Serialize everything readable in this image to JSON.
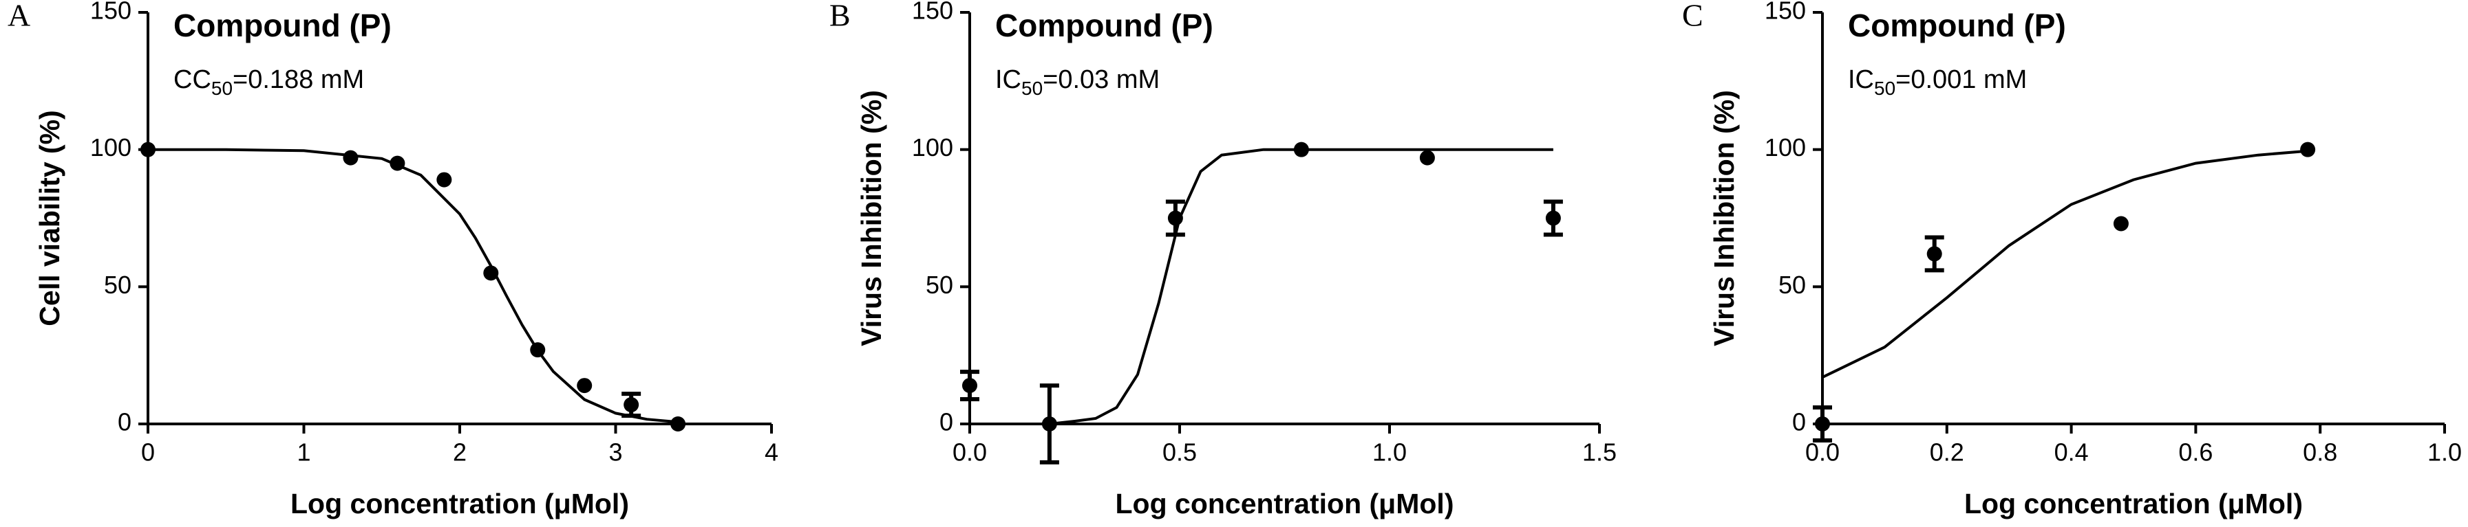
{
  "chart_data": [
    {
      "type": "scatter",
      "panel_label": "A",
      "title": "Compound (P)",
      "annotation": {
        "prefix": "CC",
        "sub": "50",
        "suffix": "=0.188 mM"
      },
      "xlabel": "Log concentration (μMol)",
      "ylabel": "Cell viability (%)",
      "color": "#000000",
      "xlim": [
        0,
        4
      ],
      "ylim": [
        0,
        150
      ],
      "xticks": [
        0,
        1,
        2,
        3,
        4
      ],
      "yticks": [
        0,
        50,
        100,
        150
      ],
      "x": [
        0,
        1.3,
        1.6,
        1.9,
        2.2,
        2.5,
        2.8,
        3.1,
        3.4
      ],
      "values": [
        100,
        97,
        95,
        89,
        55,
        27,
        14,
        7,
        0
      ],
      "errors": [
        null,
        null,
        null,
        null,
        null,
        null,
        null,
        4,
        null
      ],
      "fit": {
        "x": [
          0,
          0.5,
          1,
          1.5,
          1.75,
          2,
          2.1,
          2.2,
          2.3,
          2.4,
          2.5,
          2.6,
          2.8,
          3,
          3.2,
          3.4
        ],
        "values": [
          100,
          100,
          99.6,
          96.7,
          90.7,
          76.5,
          67.8,
          57.6,
          46.7,
          36.1,
          26.8,
          19.1,
          8.9,
          3.9,
          1.7,
          0.7
        ]
      }
    },
    {
      "type": "scatter",
      "panel_label": "B",
      "title": "Compound (P)",
      "annotation": {
        "prefix": "IC",
        "sub": "50",
        "suffix": "=0.03 mM"
      },
      "xlabel": "Log concentration (μMol)",
      "ylabel": "Virus Inhibition (%)",
      "color": "#000000",
      "xlim": [
        0,
        1.5
      ],
      "ylim": [
        0,
        150
      ],
      "xticks": [
        {
          "value": 0,
          "label": "0.0"
        },
        {
          "value": 0.5,
          "label": "0.5"
        },
        {
          "value": 1,
          "label": "1.0"
        },
        {
          "value": 1.5,
          "label": "1.5"
        }
      ],
      "yticks": [
        0,
        50,
        100,
        150
      ],
      "x": [
        0,
        0.19,
        0.49,
        0.79,
        1.09,
        1.39
      ],
      "values": [
        14,
        0,
        75,
        100,
        97,
        75
      ],
      "errors": [
        5,
        14,
        6,
        null,
        null,
        6
      ],
      "fit": {
        "x": [
          0.19,
          0.25,
          0.3,
          0.35,
          0.4,
          0.45,
          0.5,
          0.55,
          0.6,
          0.7,
          1.0,
          1.39
        ],
        "values": [
          0,
          1,
          2,
          6,
          18,
          44,
          75,
          92,
          98,
          100,
          100,
          100
        ]
      }
    },
    {
      "type": "scatter",
      "panel_label": "C",
      "title": "Compound (P)",
      "annotation": {
        "prefix": "IC",
        "sub": "50",
        "suffix": "=0.001 mM"
      },
      "xlabel": "Log concentration (μMol)",
      "ylabel": "Virus Inhibition (%)",
      "color": "#000000",
      "xlim": [
        0,
        1
      ],
      "ylim": [
        0,
        150
      ],
      "xticks": [
        {
          "value": 0,
          "label": "0.0"
        },
        {
          "value": 0.2,
          "label": "0.2"
        },
        {
          "value": 0.4,
          "label": "0.4"
        },
        {
          "value": 0.6,
          "label": "0.6"
        },
        {
          "value": 0.8,
          "label": "0.8"
        },
        {
          "value": 1,
          "label": "1.0"
        }
      ],
      "yticks": [
        0,
        50,
        100,
        150
      ],
      "x": [
        0,
        0.18,
        0.48,
        0.78
      ],
      "values": [
        0,
        62,
        73,
        100
      ],
      "errors": [
        6,
        6,
        null,
        null
      ],
      "fit": {
        "x": [
          0,
          0.1,
          0.2,
          0.3,
          0.4,
          0.5,
          0.6,
          0.7,
          0.78
        ],
        "values": [
          17,
          28,
          46,
          65,
          80,
          89,
          95,
          98,
          99.5
        ]
      }
    }
  ]
}
